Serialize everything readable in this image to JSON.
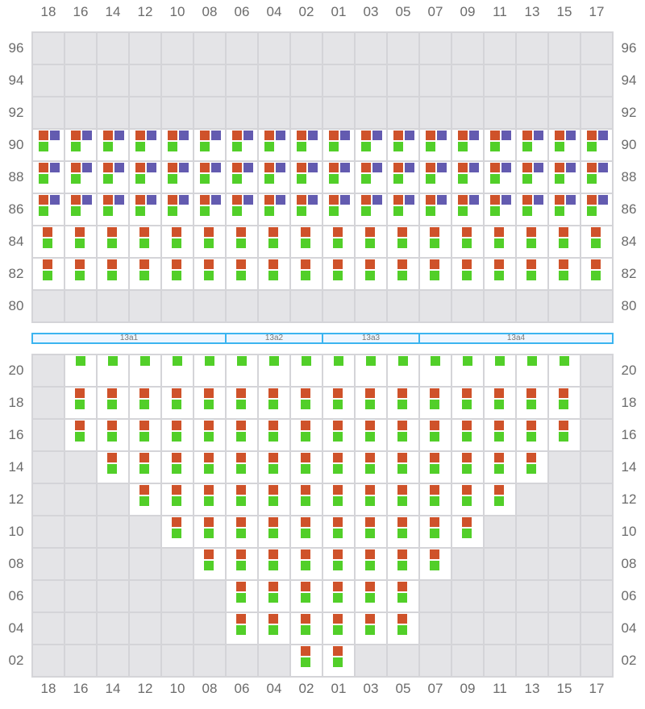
{
  "columns": [
    "18",
    "16",
    "14",
    "12",
    "10",
    "08",
    "06",
    "04",
    "02",
    "01",
    "03",
    "05",
    "07",
    "09",
    "11",
    "13",
    "15",
    "17"
  ],
  "colors": {
    "orange": "#cf522a",
    "purple": "#635bb0",
    "green": "#52cf29",
    "unavailable": "#e4e4e7",
    "border": "#d4d4d8",
    "band_border": "#3bb4f0"
  },
  "upper_section": {
    "rows": [
      {
        "label": "96",
        "seats": "none"
      },
      {
        "label": "94",
        "seats": "none"
      },
      {
        "label": "92",
        "seats": "none"
      },
      {
        "label": "90",
        "seats": "orange-purple-green"
      },
      {
        "label": "88",
        "seats": "orange-purple-green"
      },
      {
        "label": "86",
        "seats": "orange-purple-green"
      },
      {
        "label": "84",
        "seats": "orange-green"
      },
      {
        "label": "82",
        "seats": "orange-green"
      },
      {
        "label": "80",
        "seats": "none"
      }
    ]
  },
  "sections": [
    {
      "label": "13a1",
      "from": "18",
      "to": "08"
    },
    {
      "label": "13a2",
      "from": "06",
      "to": "02"
    },
    {
      "label": "13a3",
      "from": "01",
      "to": "05"
    },
    {
      "label": "13a4",
      "from": "07",
      "to": "17"
    }
  ],
  "lower_section": {
    "rows": [
      {
        "label": "20",
        "seats": "green",
        "from": "16",
        "to": "15"
      },
      {
        "label": "18",
        "seats": "orange-green",
        "from": "16",
        "to": "15"
      },
      {
        "label": "16",
        "seats": "orange-green",
        "from": "16",
        "to": "15"
      },
      {
        "label": "14",
        "seats": "orange-green",
        "from": "14",
        "to": "13"
      },
      {
        "label": "12",
        "seats": "orange-green",
        "from": "12",
        "to": "11"
      },
      {
        "label": "10",
        "seats": "orange-green",
        "from": "10",
        "to": "09"
      },
      {
        "label": "08",
        "seats": "orange-green",
        "from": "08",
        "to": "07"
      },
      {
        "label": "06",
        "seats": "orange-green",
        "from": "06",
        "to": "05"
      },
      {
        "label": "04",
        "seats": "orange-green",
        "from": "06",
        "to": "05"
      },
      {
        "label": "02",
        "seats": "orange-green",
        "from": "02",
        "to": "01"
      }
    ]
  }
}
